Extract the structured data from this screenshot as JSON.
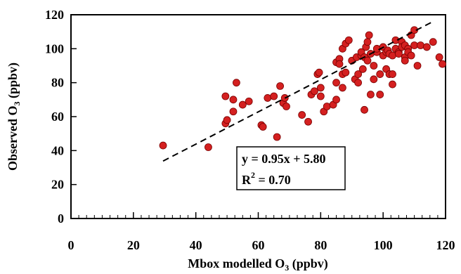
{
  "chart_data": {
    "type": "scatter",
    "title": "",
    "xlabel_main": "Mbox modelled O",
    "xlabel_sub": "3",
    "xlabel_rest": " (ppbv)",
    "ylabel_main": "Observed O",
    "ylabel_sub": "3",
    "ylabel_rest": " (ppbv)",
    "xlim": [
      0,
      120
    ],
    "ylim": [
      0,
      120
    ],
    "xticks": [
      "0",
      "20",
      "40",
      "60",
      "80",
      "100",
      "120"
    ],
    "yticks": [
      "0",
      "20",
      "40",
      "60",
      "80",
      "100",
      "120"
    ],
    "grid": false,
    "marker_color": "#d42020",
    "marker_edge": "#7a0000",
    "fit": {
      "slope": 0.95,
      "intercept": 5.8,
      "x_range": [
        29.5,
        116
      ],
      "equation": "y = 0.95x + 5.80",
      "r2_prefix": "R",
      "r2_sup": "2",
      "r2_value": " = 0.70"
    },
    "points": [
      [
        29.5,
        43
      ],
      [
        44,
        42
      ],
      [
        49.5,
        56
      ],
      [
        50,
        58
      ],
      [
        49.5,
        72
      ],
      [
        52,
        70
      ],
      [
        53,
        80
      ],
      [
        52,
        63
      ],
      [
        55,
        67
      ],
      [
        57,
        69
      ],
      [
        61,
        55
      ],
      [
        61.5,
        54
      ],
      [
        63,
        71
      ],
      [
        65,
        72
      ],
      [
        66,
        48
      ],
      [
        67,
        78
      ],
      [
        68,
        68
      ],
      [
        68.5,
        71
      ],
      [
        69,
        66
      ],
      [
        74,
        61
      ],
      [
        76,
        57
      ],
      [
        77,
        73
      ],
      [
        78,
        75
      ],
      [
        79,
        85
      ],
      [
        79.5,
        86
      ],
      [
        80,
        77
      ],
      [
        80,
        72
      ],
      [
        81,
        63
      ],
      [
        82,
        66
      ],
      [
        84,
        67
      ],
      [
        85,
        70
      ],
      [
        85,
        80
      ],
      [
        85,
        92
      ],
      [
        86,
        94
      ],
      [
        86,
        91
      ],
      [
        87,
        85
      ],
      [
        87,
        77
      ],
      [
        87,
        100
      ],
      [
        88,
        103
      ],
      [
        88,
        86
      ],
      [
        89,
        105
      ],
      [
        90,
        93
      ],
      [
        91,
        82
      ],
      [
        91.5,
        95
      ],
      [
        92,
        80
      ],
      [
        92,
        85
      ],
      [
        93,
        96
      ],
      [
        93,
        98
      ],
      [
        93.5,
        88
      ],
      [
        94,
        64
      ],
      [
        94,
        95
      ],
      [
        94.5,
        101
      ],
      [
        95,
        93
      ],
      [
        95,
        104
      ],
      [
        95.5,
        108
      ],
      [
        96,
        97
      ],
      [
        96,
        73
      ],
      [
        97,
        90
      ],
      [
        97,
        82
      ],
      [
        98,
        98
      ],
      [
        98,
        100
      ],
      [
        99,
        73
      ],
      [
        99,
        85
      ],
      [
        100,
        101
      ],
      [
        100,
        96
      ],
      [
        101,
        98
      ],
      [
        101,
        88
      ],
      [
        101.5,
        99
      ],
      [
        102,
        97
      ],
      [
        102,
        85
      ],
      [
        103,
        96
      ],
      [
        103,
        79
      ],
      [
        103,
        85
      ],
      [
        104,
        105
      ],
      [
        104,
        100
      ],
      [
        105,
        98
      ],
      [
        105,
        97
      ],
      [
        106,
        104
      ],
      [
        106,
        101
      ],
      [
        107,
        102
      ],
      [
        107,
        95
      ],
      [
        107,
        93
      ],
      [
        108,
        100
      ],
      [
        108,
        98
      ],
      [
        109,
        108
      ],
      [
        109,
        96
      ],
      [
        110,
        111
      ],
      [
        110,
        102
      ],
      [
        111,
        90
      ],
      [
        112,
        102
      ],
      [
        114,
        101
      ],
      [
        116,
        104
      ],
      [
        118,
        95
      ],
      [
        119,
        91
      ]
    ]
  }
}
